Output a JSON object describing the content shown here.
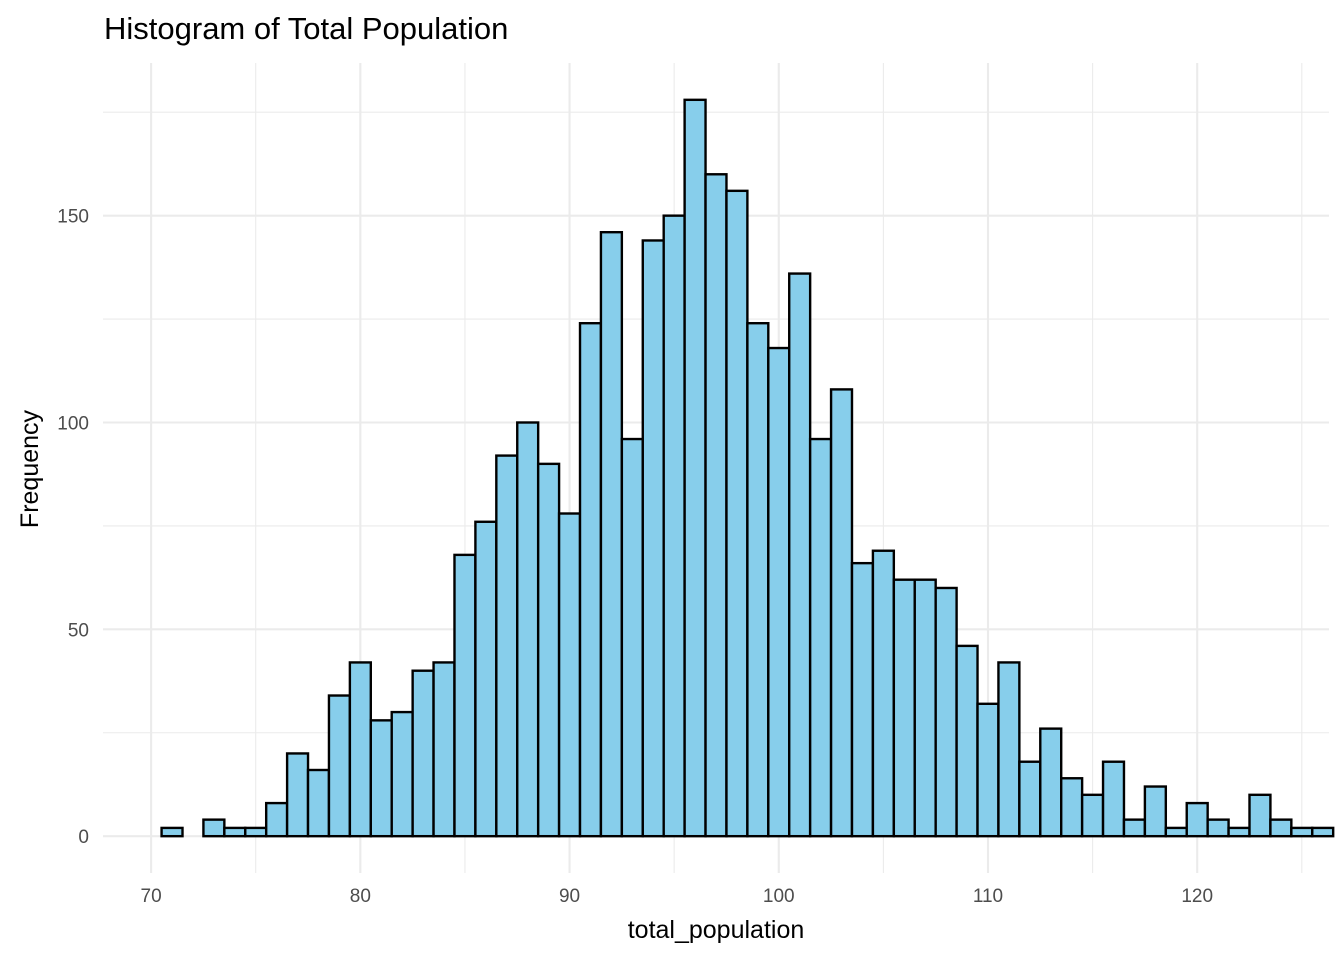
{
  "chart_data": {
    "type": "bar",
    "subtype": "histogram",
    "title": "Histogram of Total Population",
    "xlabel": "total_population",
    "ylabel": "Frequency",
    "xlim": [
      67.7,
      126.3
    ],
    "ylim": [
      -8.9,
      186.9
    ],
    "x_ticks": [
      70,
      80,
      90,
      100,
      110,
      120
    ],
    "x_tick_labels": [
      "70",
      "80",
      "90",
      "100",
      "110",
      "120"
    ],
    "x_minor_ticks": [
      75,
      85,
      95,
      105,
      115,
      125
    ],
    "y_ticks": [
      0,
      50,
      100,
      150
    ],
    "y_tick_labels": [
      "0",
      "50",
      "100",
      "150"
    ],
    "y_minor_ticks": [
      25,
      75,
      125,
      175
    ],
    "grid": true,
    "bin_width": 1,
    "bin_start": 70.5,
    "bin_centers": [
      71,
      72,
      73,
      74,
      75,
      76,
      77,
      78,
      79,
      80,
      81,
      82,
      83,
      84,
      85,
      86,
      87,
      88,
      89,
      90,
      91,
      92,
      93,
      94,
      95,
      96,
      97,
      98,
      99,
      100,
      101,
      102,
      103,
      104,
      105,
      106,
      107,
      108,
      109,
      110,
      111,
      112,
      113,
      114,
      115,
      116,
      117,
      118,
      119,
      120,
      121,
      122,
      123,
      124,
      125,
      126
    ],
    "values": [
      2,
      0,
      4,
      2,
      2,
      8,
      20,
      16,
      34,
      42,
      28,
      30,
      40,
      42,
      68,
      76,
      92,
      100,
      90,
      78,
      124,
      146,
      96,
      144,
      150,
      178,
      160,
      156,
      124,
      118,
      136,
      96,
      108,
      66,
      69,
      62,
      62,
      60,
      46,
      32,
      42,
      18,
      26,
      14,
      10,
      18,
      4,
      12,
      2,
      8,
      4,
      2,
      10,
      4,
      2,
      2
    ],
    "colors": {
      "fill": "#87ceeb",
      "outline": "#000000",
      "grid": "#ebebeb",
      "tick_text": "#4d4d4d"
    }
  }
}
